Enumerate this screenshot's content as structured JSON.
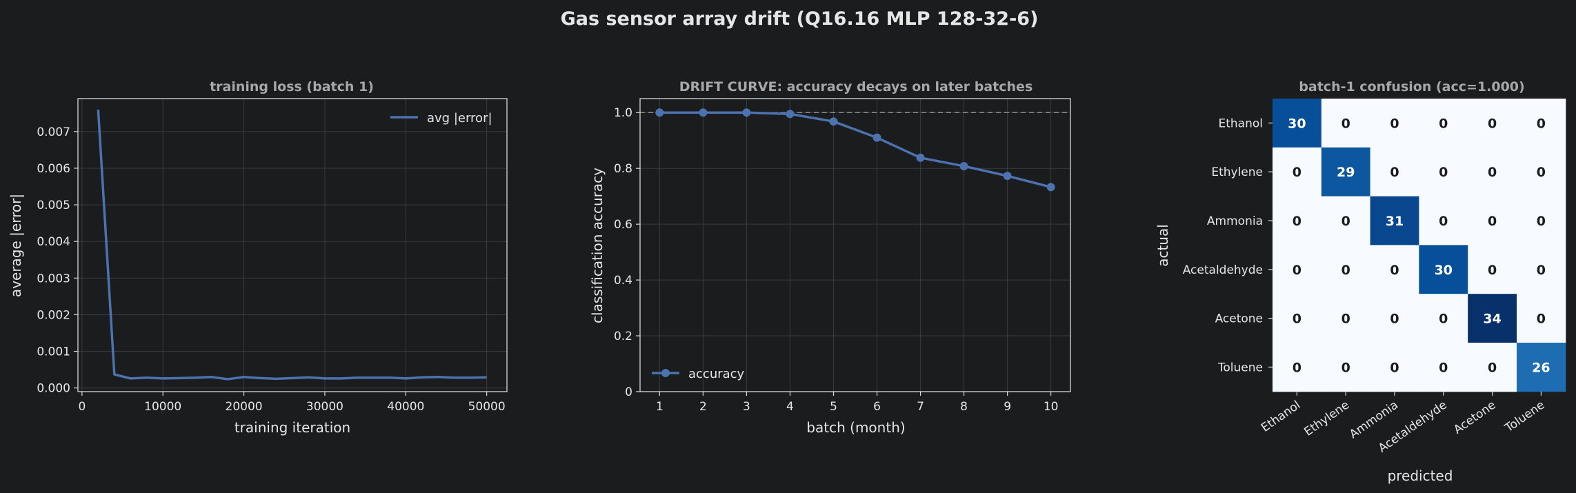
{
  "suptitle": "Gas sensor array drift (Q16.16 MLP 128-32-6)",
  "colors": {
    "background": "#1b1c1e",
    "axes_edge": "#d9d9d9",
    "grid": "#3a3b3e",
    "text": "#e6e6e6",
    "title_text": "#a8a8a8",
    "series": "#4c72b0",
    "reference_line": "#8c8c8c",
    "cm_low": "#f7fbff",
    "cm_high": "#08306b"
  },
  "chart_data": [
    {
      "type": "line",
      "title": "training loss (batch 1)",
      "xlabel": "training iteration",
      "ylabel": "average |error|",
      "xlim": [
        -500,
        52500
      ],
      "ylim": [
        -0.0001,
        0.0079
      ],
      "xticks": [
        0,
        10000,
        20000,
        30000,
        40000,
        50000
      ],
      "xtick_labels": [
        "0",
        "10000",
        "20000",
        "30000",
        "40000",
        "50000"
      ],
      "yticks": [
        0.0,
        0.001,
        0.002,
        0.003,
        0.004,
        0.005,
        0.006,
        0.007
      ],
      "ytick_labels": [
        "0.000",
        "0.001",
        "0.002",
        "0.003",
        "0.004",
        "0.005",
        "0.006",
        "0.007"
      ],
      "grid": true,
      "legend_position": "upper right",
      "series": [
        {
          "name": "avg |error|",
          "x": [
            2000,
            4000,
            6000,
            8000,
            10000,
            12000,
            14000,
            16000,
            18000,
            20000,
            22000,
            24000,
            26000,
            28000,
            30000,
            32000,
            34000,
            36000,
            38000,
            40000,
            42000,
            44000,
            46000,
            48000,
            50000
          ],
          "y": [
            0.0076,
            0.00037,
            0.00026,
            0.00028,
            0.00026,
            0.00027,
            0.00028,
            0.0003,
            0.00024,
            0.0003,
            0.00027,
            0.00025,
            0.00027,
            0.00029,
            0.00026,
            0.00026,
            0.00028,
            0.00028,
            0.00028,
            0.00026,
            0.00029,
            0.0003,
            0.00028,
            0.00028,
            0.00029
          ]
        }
      ]
    },
    {
      "type": "line",
      "title": "DRIFT CURVE: accuracy decays on later batches",
      "xlabel": "batch (month)",
      "ylabel": "classification accuracy",
      "xlim": [
        0.55,
        10.45
      ],
      "ylim": [
        0,
        1.05
      ],
      "xticks": [
        1,
        2,
        3,
        4,
        5,
        6,
        7,
        8,
        9,
        10
      ],
      "xtick_labels": [
        "1",
        "2",
        "3",
        "4",
        "5",
        "6",
        "7",
        "8",
        "9",
        "10"
      ],
      "yticks": [
        0,
        0.2,
        0.4,
        0.6,
        0.8,
        1.0
      ],
      "ytick_labels": [
        "0",
        "0.2",
        "0.4",
        "0.6",
        "0.8",
        "1.0"
      ],
      "grid": true,
      "reference_line_y": 1.0,
      "legend_position": "lower left",
      "series": [
        {
          "name": "accuracy",
          "x": [
            1,
            2,
            3,
            4,
            5,
            6,
            7,
            8,
            9,
            10
          ],
          "y": [
            1.0,
            1.0,
            1.0,
            0.995,
            0.968,
            0.91,
            0.838,
            0.808,
            0.773,
            0.733
          ]
        }
      ]
    },
    {
      "type": "heatmap",
      "title": "batch-1 confusion  (acc=1.000)",
      "xlabel": "predicted",
      "ylabel": "actual",
      "row_labels": [
        "Ethanol",
        "Ethylene",
        "Ammonia",
        "Acetaldehyde",
        "Acetone",
        "Toluene"
      ],
      "col_labels": [
        "Ethanol",
        "Ethylene",
        "Ammonia",
        "Acetaldehyde",
        "Acetone",
        "Toluene"
      ],
      "values": [
        [
          30,
          0,
          0,
          0,
          0,
          0
        ],
        [
          0,
          29,
          0,
          0,
          0,
          0
        ],
        [
          0,
          0,
          31,
          0,
          0,
          0
        ],
        [
          0,
          0,
          0,
          30,
          0,
          0
        ],
        [
          0,
          0,
          0,
          0,
          34,
          0
        ],
        [
          0,
          0,
          0,
          0,
          0,
          26
        ]
      ],
      "vmin": 0,
      "vmax": 34
    }
  ]
}
